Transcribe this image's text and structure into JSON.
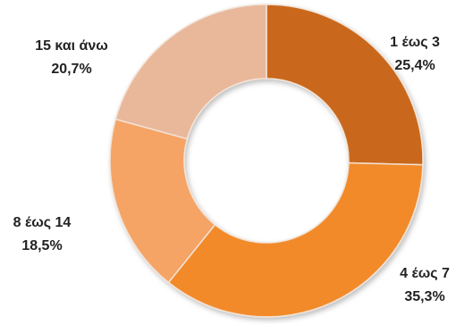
{
  "chart_data": {
    "type": "pie",
    "donut": true,
    "slices": [
      {
        "label": "1 έως 3",
        "value": 25.4,
        "value_label": "25,4%",
        "color": "#c9681e"
      },
      {
        "label": "4 έως 7",
        "value": 35.3,
        "value_label": "35,3%",
        "color": "#f28a2a"
      },
      {
        "label": "8 έως 14",
        "value": 18.5,
        "value_label": "18,5%",
        "color": "#f5a466"
      },
      {
        "label": "15 και άνω",
        "value": 20.7,
        "value_label": "20,7%",
        "color": "#e9b89a"
      }
    ]
  }
}
